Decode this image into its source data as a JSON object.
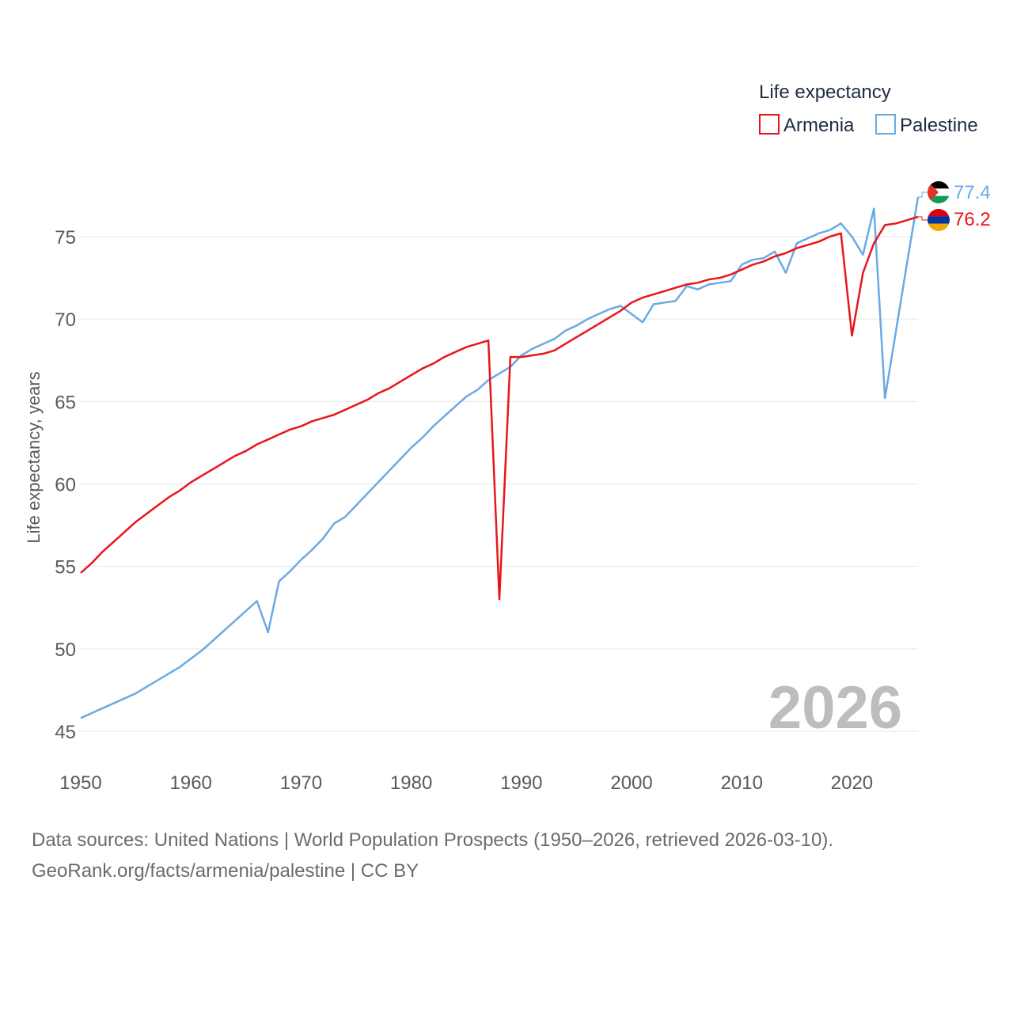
{
  "chart_data": {
    "type": "line",
    "legend_title": "Life expectancy",
    "ylabel": "Life expectancy, years",
    "xlabel": "",
    "xlim": [
      1950,
      2026
    ],
    "ylim": [
      44,
      78
    ],
    "yticks": [
      45,
      50,
      55,
      60,
      65,
      70,
      75
    ],
    "xticks": [
      1950,
      1960,
      1970,
      1980,
      1990,
      2000,
      2010,
      2020
    ],
    "year_label": "2026",
    "legend_position": "top-right",
    "x": [
      1950,
      1951,
      1952,
      1953,
      1954,
      1955,
      1956,
      1957,
      1958,
      1959,
      1960,
      1961,
      1962,
      1963,
      1964,
      1965,
      1966,
      1967,
      1968,
      1969,
      1970,
      1971,
      1972,
      1973,
      1974,
      1975,
      1976,
      1977,
      1978,
      1979,
      1980,
      1981,
      1982,
      1983,
      1984,
      1985,
      1986,
      1987,
      1988,
      1989,
      1990,
      1991,
      1992,
      1993,
      1994,
      1995,
      1996,
      1997,
      1998,
      1999,
      2000,
      2001,
      2002,
      2003,
      2004,
      2005,
      2006,
      2007,
      2008,
      2009,
      2010,
      2011,
      2012,
      2013,
      2014,
      2015,
      2016,
      2017,
      2018,
      2019,
      2020,
      2021,
      2022,
      2023,
      2024,
      2025,
      2026
    ],
    "series": [
      {
        "name": "Armenia",
        "color": "#e8161b",
        "end_value": "76.2",
        "flag_icon": "armenia-flag-icon",
        "values": [
          54.6,
          55.2,
          55.9,
          56.5,
          57.1,
          57.7,
          58.2,
          58.7,
          59.2,
          59.6,
          60.1,
          60.5,
          60.9,
          61.3,
          61.7,
          62.0,
          62.4,
          62.7,
          63.0,
          63.3,
          63.5,
          63.8,
          64.0,
          64.2,
          64.5,
          64.8,
          65.1,
          65.5,
          65.8,
          66.2,
          66.6,
          67.0,
          67.3,
          67.7,
          68.0,
          68.3,
          68.5,
          68.7,
          53.0,
          67.7,
          67.7,
          67.8,
          67.9,
          68.1,
          68.5,
          68.9,
          69.3,
          69.7,
          70.1,
          70.5,
          71.0,
          71.3,
          71.5,
          71.7,
          71.9,
          72.1,
          72.2,
          72.4,
          72.5,
          72.7,
          73.0,
          73.3,
          73.5,
          73.8,
          74.0,
          74.3,
          74.5,
          74.7,
          75.0,
          75.2,
          69.0,
          72.8,
          74.6,
          75.7,
          75.8,
          76.0,
          76.2
        ]
      },
      {
        "name": "Palestine",
        "color": "#6aaae4",
        "end_value": "77.4",
        "flag_icon": "palestine-flag-icon",
        "values": [
          45.8,
          46.1,
          46.4,
          46.7,
          47.0,
          47.3,
          47.7,
          48.1,
          48.5,
          48.9,
          49.4,
          49.9,
          50.5,
          51.1,
          51.7,
          52.3,
          52.9,
          51.0,
          54.1,
          54.7,
          55.4,
          56.0,
          56.7,
          57.6,
          58.0,
          58.7,
          59.4,
          60.1,
          60.8,
          61.5,
          62.2,
          62.8,
          63.5,
          64.1,
          64.7,
          65.3,
          65.7,
          66.3,
          66.7,
          67.1,
          67.8,
          68.2,
          68.5,
          68.8,
          69.3,
          69.6,
          70.0,
          70.3,
          70.6,
          70.8,
          70.3,
          69.8,
          70.9,
          71.0,
          71.1,
          72.0,
          71.8,
          72.1,
          72.2,
          72.3,
          73.3,
          73.6,
          73.7,
          74.1,
          72.8,
          74.6,
          74.9,
          75.2,
          75.4,
          75.8,
          75.0,
          73.9,
          76.7,
          65.2,
          69.3,
          73.4,
          77.4
        ]
      }
    ]
  },
  "footer": {
    "line1": "Data sources: United Nations | World Population Prospects (1950–2026, retrieved 2026-03-10).",
    "line2": "GeoRank.org/facts/armenia/palestine | CC BY"
  }
}
